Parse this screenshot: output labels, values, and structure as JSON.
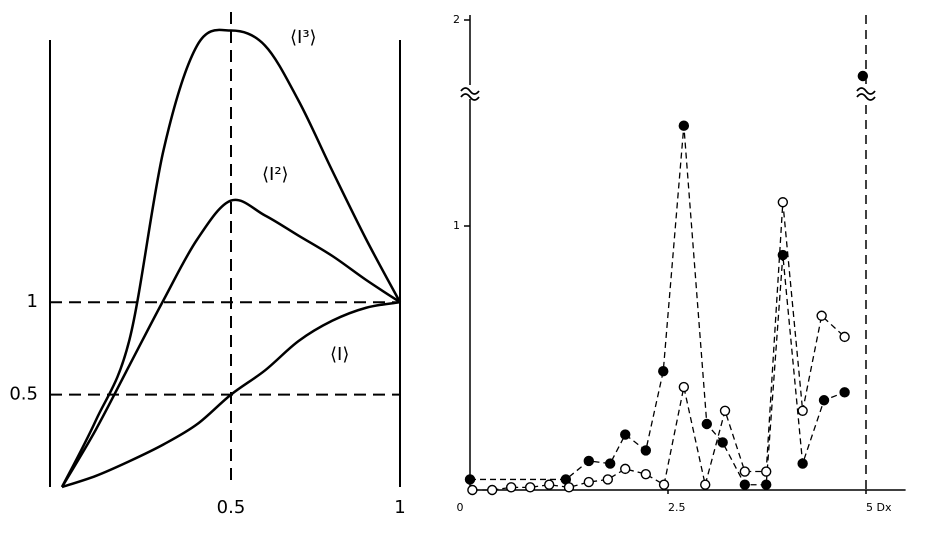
{
  "chart_data": [
    {
      "type": "line",
      "x": [
        0,
        0.1,
        0.2,
        0.3,
        0.4,
        0.5,
        0.6,
        0.7,
        0.8,
        0.9,
        1
      ],
      "series": [
        {
          "name": "⟨I⟩",
          "color": "#000000",
          "values": [
            0,
            0.06,
            0.14,
            0.23,
            0.34,
            0.5,
            0.63,
            0.79,
            0.9,
            0.97,
            1
          ]
        },
        {
          "name": "⟨I²⟩",
          "color": "#000000",
          "values": [
            0,
            0.31,
            0.66,
            1.01,
            1.34,
            1.55,
            1.47,
            1.36,
            1.25,
            1.12,
            1
          ]
        },
        {
          "name": "⟨I³⟩",
          "color": "#000000",
          "values": [
            0,
            0.36,
            0.8,
            1.82,
            2.39,
            2.47,
            2.39,
            2.09,
            1.71,
            1.34,
            1
          ]
        }
      ],
      "xlim": [
        0,
        1
      ],
      "ylim": [
        0,
        2.5
      ],
      "xticks": [
        0.5,
        1
      ],
      "yticks": [
        0.5,
        1
      ],
      "grid": "dashed"
    },
    {
      "type": "dotline",
      "series": [
        {
          "marker": "filled",
          "color": "#000000",
          "x": [
            0,
            1.21,
            1.5,
            1.77,
            1.96,
            2.22,
            2.44,
            2.7,
            2.99,
            3.19,
            3.47,
            3.74,
            3.95,
            4.2,
            4.47,
            4.73,
            4.96
          ],
          "values": [
            0.04,
            0.04,
            0.11,
            0.1,
            0.21,
            0.15,
            0.45,
            1.38,
            0.25,
            0.18,
            0.02,
            0.02,
            0.89,
            0.1,
            0.34,
            0.37,
            1.84
          ]
        },
        {
          "marker": "open",
          "color": "#000000",
          "x": [
            0.03,
            0.28,
            0.52,
            0.76,
            1.0,
            1.25,
            1.5,
            1.74,
            1.96,
            2.22,
            2.45,
            2.7,
            2.97,
            3.22,
            3.47,
            3.74,
            3.95,
            4.2,
            4.44,
            4.73
          ],
          "values": [
            0.0,
            0.0,
            0.01,
            0.01,
            0.02,
            0.01,
            0.03,
            0.04,
            0.08,
            0.06,
            0.02,
            0.39,
            0.02,
            0.3,
            0.07,
            0.07,
            1.09,
            0.3,
            0.66,
            0.58
          ]
        }
      ],
      "xlim": [
        0,
        5.5
      ],
      "ylim": [
        0,
        2
      ],
      "ybreak": [
        1.5,
        1.8
      ],
      "xticks": [
        0,
        2.5,
        {
          "value": 5,
          "label": "5 Dx"
        }
      ],
      "yticks": [
        1,
        2
      ],
      "reference_lines": [
        {
          "axis": "x",
          "value": 5,
          "style": "dashed"
        }
      ]
    }
  ]
}
